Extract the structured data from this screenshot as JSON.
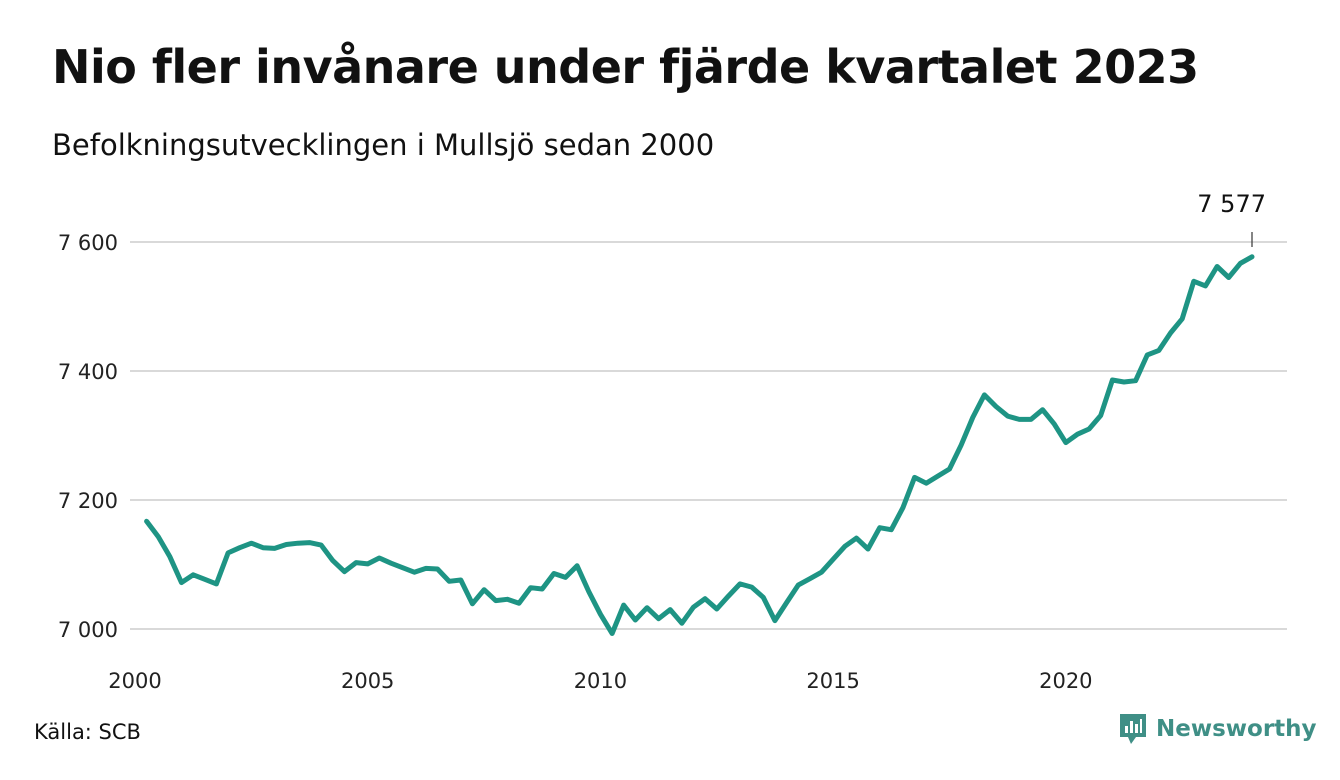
{
  "header": {
    "title": "Nio fler invånare under fjärde kvartalet 2023",
    "subtitle": "Befolkningsutvecklingen i Mullsjö sedan 2000"
  },
  "footer": {
    "source": "Källa: SCB",
    "brand": "Newsworthy"
  },
  "colors": {
    "line": "#1e9484",
    "grid": "#d9d9d9",
    "brand": "#3f8f86"
  },
  "chart_data": {
    "type": "line",
    "title": "Nio fler invånare under fjärde kvartalet 2023",
    "subtitle": "Befolkningsutvecklingen i Mullsjö sedan 2000",
    "xlabel": "",
    "ylabel": "",
    "x_ticks": [
      "2000",
      "2005",
      "2010",
      "2015",
      "2020"
    ],
    "y_ticks": [
      7000,
      7200,
      7400,
      7600
    ],
    "y_tick_labels": [
      "7 000",
      "7 200",
      "7 400",
      "7 600"
    ],
    "ylim": [
      6975,
      7620
    ],
    "xlim": [
      2000.0,
      2024.0
    ],
    "grid": true,
    "end_label": "7 577",
    "series": [
      {
        "x": [
          2000.25,
          2000.5,
          2000.75,
          2001.0,
          2001.25,
          2001.5,
          2001.75,
          2002.0,
          2002.25,
          2002.5,
          2002.75,
          2003.0,
          2003.25,
          2003.5,
          2003.75,
          2004.0,
          2004.25,
          2004.5,
          2004.75,
          2005.0,
          2005.25,
          2005.5,
          2005.75,
          2006.0,
          2006.25,
          2006.5,
          2006.75,
          2007.0,
          2007.25,
          2007.5,
          2007.75,
          2008.0,
          2008.25,
          2008.5,
          2008.75,
          2009.0,
          2009.25,
          2009.5,
          2009.75,
          2010.0,
          2010.25,
          2010.5,
          2010.75,
          2011.0,
          2011.25,
          2011.5,
          2011.75,
          2012.0,
          2012.25,
          2012.5,
          2012.75,
          2013.0,
          2013.25,
          2013.5,
          2013.75,
          2014.0,
          2014.25,
          2014.5,
          2014.75,
          2015.0,
          2015.25,
          2015.5,
          2015.75,
          2016.0,
          2016.25,
          2016.5,
          2016.75,
          2017.0,
          2017.25,
          2017.5,
          2017.75,
          2018.0,
          2018.25,
          2018.5,
          2018.75,
          2019.0,
          2019.25,
          2019.5,
          2019.75,
          2020.0,
          2020.25,
          2020.5,
          2020.75,
          2021.0,
          2021.25,
          2021.5,
          2021.75,
          2022.0,
          2022.25,
          2022.5,
          2022.75,
          2023.0,
          2023.25,
          2023.5,
          2023.75,
          2024.0
        ],
        "values": [
          7167,
          7143,
          7112,
          7072,
          7084,
          7077,
          7070,
          7118,
          7126,
          7133,
          7126,
          7125,
          7131,
          7133,
          7134,
          7130,
          7106,
          7089,
          7103,
          7101,
          7110,
          7102,
          7095,
          7088,
          7094,
          7093,
          7074,
          7076,
          7039,
          7061,
          7044,
          7046,
          7040,
          7064,
          7062,
          7086,
          7080,
          7098,
          7058,
          7023,
          6993,
          7037,
          7014,
          7033,
          7016,
          7030,
          7009,
          7034,
          7047,
          7031,
          7051,
          7070,
          7065,
          7049,
          7013,
          7041,
          7068,
          7078,
          7088,
          7108,
          7128,
          7141,
          7124,
          7157,
          7154,
          7188,
          7235,
          7226,
          7237,
          7248,
          7285,
          7328,
          7363,
          7345,
          7330,
          7325,
          7325,
          7340,
          7318,
          7289,
          7302,
          7310,
          7331,
          7386,
          7383,
          7385,
          7425,
          7432,
          7459,
          7481,
          7539,
          7532,
          7562,
          7545,
          7567,
          7577
        ]
      }
    ]
  }
}
